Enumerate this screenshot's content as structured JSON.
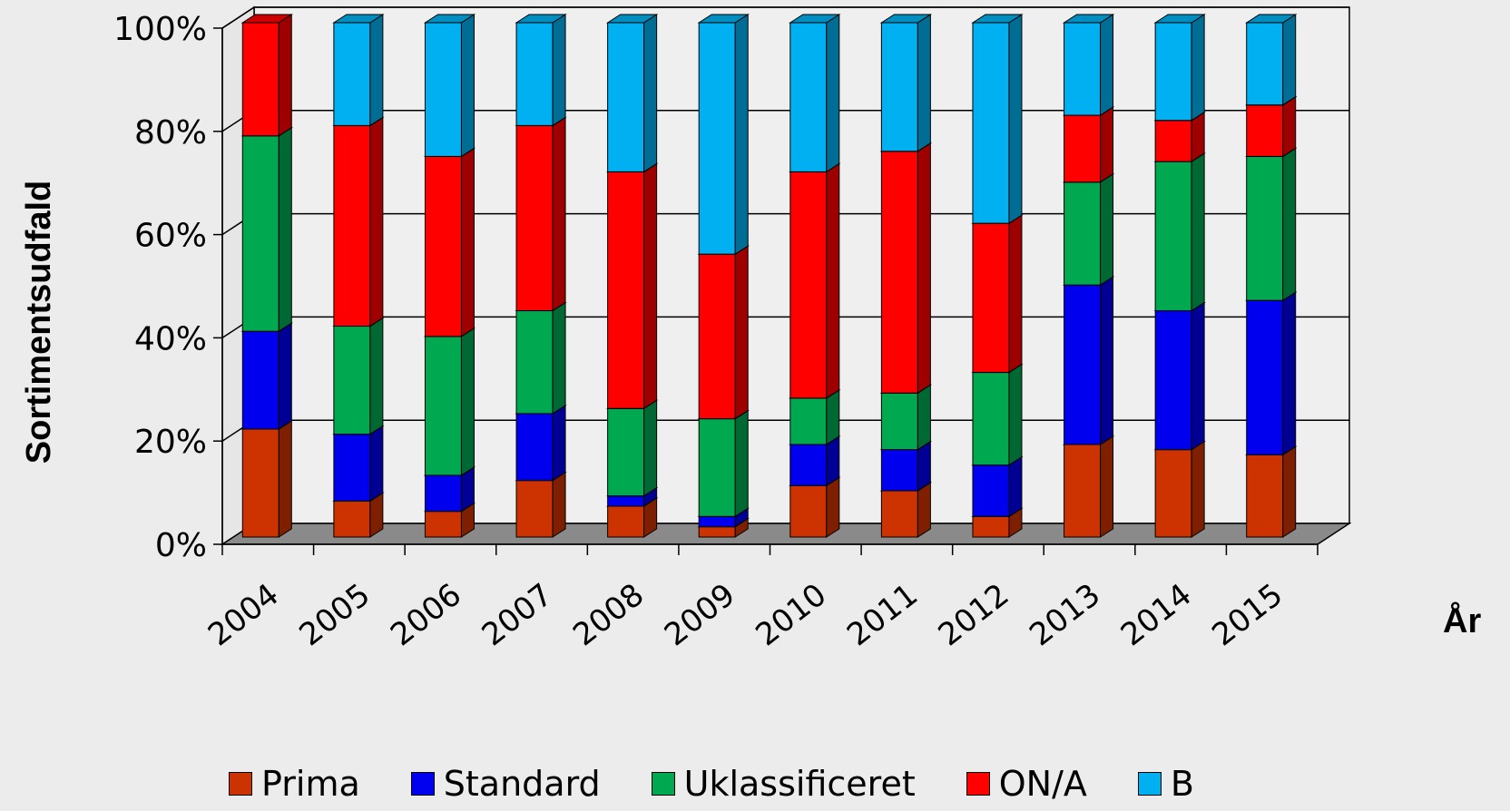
{
  "chart_data": {
    "type": "bar",
    "stacked": true,
    "percent_stacked": true,
    "three_d": true,
    "xlabel": "År",
    "ylabel": "Sortimentsudfald",
    "ylim": [
      0,
      100
    ],
    "yticks": [
      "0%",
      "20%",
      "40%",
      "60%",
      "80%",
      "100%"
    ],
    "grid": true,
    "legend_position": "bottom",
    "categories": [
      "2004",
      "2005",
      "2006",
      "2007",
      "2008",
      "2009",
      "2010",
      "2011",
      "2012",
      "2013",
      "2014",
      "2015"
    ],
    "series": [
      {
        "name": "Prima",
        "color": "#cc3300",
        "values": [
          21,
          7,
          5,
          11,
          6,
          2,
          10,
          9,
          4,
          18,
          17,
          16
        ]
      },
      {
        "name": "Standard",
        "color": "#0000ee",
        "values": [
          19,
          13,
          7,
          13,
          2,
          2,
          8,
          8,
          10,
          31,
          27,
          30
        ]
      },
      {
        "name": "Uklassificeret",
        "color": "#00a850",
        "values": [
          38,
          21,
          27,
          20,
          17,
          19,
          9,
          11,
          18,
          20,
          29,
          28
        ]
      },
      {
        "name": "ON/A",
        "color": "#ff0000",
        "values": [
          22,
          39,
          35,
          36,
          46,
          32,
          44,
          47,
          29,
          13,
          8,
          10
        ]
      },
      {
        "name": "B",
        "color": "#00b0f0",
        "values": [
          0,
          20,
          26,
          20,
          29,
          45,
          29,
          25,
          39,
          18,
          19,
          16
        ]
      }
    ]
  }
}
